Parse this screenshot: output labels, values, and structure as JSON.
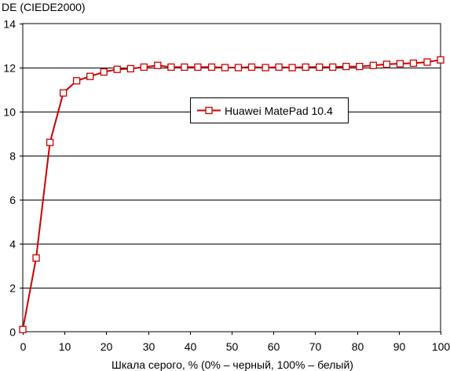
{
  "chart_data": {
    "type": "line",
    "title": "",
    "ylabel": "DE (CIEDE2000)",
    "xlabel": "Шкала серого, % (0% – черный, 100% – белый)",
    "xlim": [
      0,
      100
    ],
    "ylim": [
      0,
      14
    ],
    "xticks": [
      0,
      10,
      20,
      30,
      40,
      50,
      60,
      70,
      80,
      90,
      100
    ],
    "yticks": [
      0,
      2,
      4,
      6,
      8,
      10,
      12,
      14
    ],
    "grid": "horizontal",
    "legend_position": "center-right",
    "series": [
      {
        "name": "Huawei MatePad 10.4",
        "color": "#cc0000",
        "marker": "open-square",
        "x": [
          0,
          3.2,
          6.5,
          9.7,
          12.9,
          16.1,
          19.4,
          22.6,
          25.8,
          29.0,
          32.3,
          35.5,
          38.7,
          41.9,
          45.2,
          48.4,
          51.6,
          54.8,
          58.1,
          61.3,
          64.5,
          67.7,
          71.0,
          74.2,
          77.4,
          80.6,
          83.9,
          87.1,
          90.3,
          93.5,
          96.8,
          100
        ],
        "y": [
          0.1,
          3.35,
          8.6,
          10.85,
          11.4,
          11.6,
          11.8,
          11.92,
          11.95,
          12.02,
          12.1,
          12.02,
          12.02,
          12.02,
          12.02,
          12.0,
          12.0,
          12.02,
          12.0,
          12.02,
          12.0,
          12.02,
          12.02,
          12.02,
          12.05,
          12.05,
          12.1,
          12.15,
          12.18,
          12.2,
          12.25,
          12.35
        ]
      }
    ]
  }
}
